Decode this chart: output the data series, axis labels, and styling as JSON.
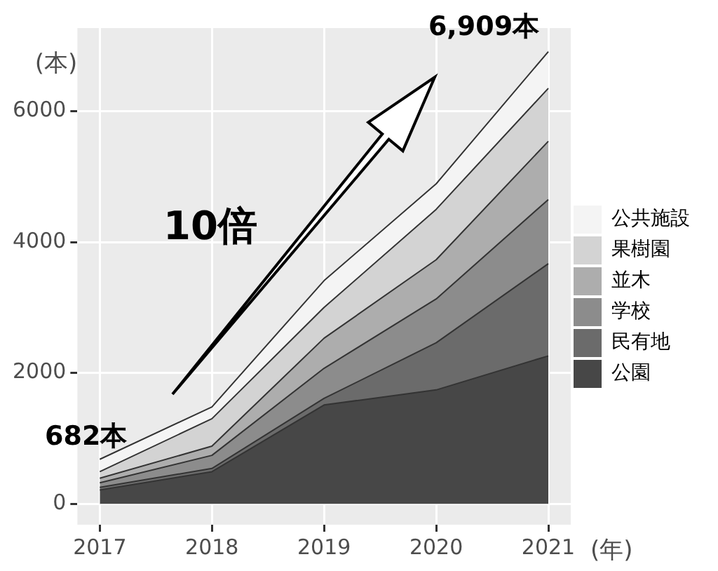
{
  "chart_data": {
    "type": "area",
    "xlabel": "(年)",
    "ylabel": "(本)",
    "x": [
      2017,
      2018,
      2019,
      2020,
      2021
    ],
    "series": [
      {
        "name": "公園",
        "color": "#474747",
        "values": [
          210,
          490,
          1510,
          1740,
          2260
        ]
      },
      {
        "name": "民有地",
        "color": "#6b6b6b",
        "values": [
          40,
          50,
          100,
          720,
          1410
        ]
      },
      {
        "name": "学校",
        "color": "#8c8c8c",
        "values": [
          70,
          200,
          460,
          670,
          980
        ]
      },
      {
        "name": "並木",
        "color": "#adadad",
        "values": [
          70,
          140,
          460,
          600,
          890
        ]
      },
      {
        "name": "果樹園",
        "color": "#d3d3d3",
        "values": [
          100,
          420,
          470,
          770,
          810
        ]
      },
      {
        "name": "公共施設",
        "color": "#f4f4f4",
        "values": [
          190,
          180,
          410,
          390,
          560
        ]
      }
    ],
    "stacked": true,
    "xlim": [
      2016.8,
      2021.2
    ],
    "xticks": [
      2017,
      2018,
      2019,
      2020,
      2021
    ],
    "ylim": [
      -320,
      7270
    ],
    "yticks": [
      0,
      2000,
      4000,
      6000
    ],
    "grid": true,
    "legend": "right",
    "annotations": [
      "682本",
      "10倍",
      "6,909本"
    ]
  }
}
